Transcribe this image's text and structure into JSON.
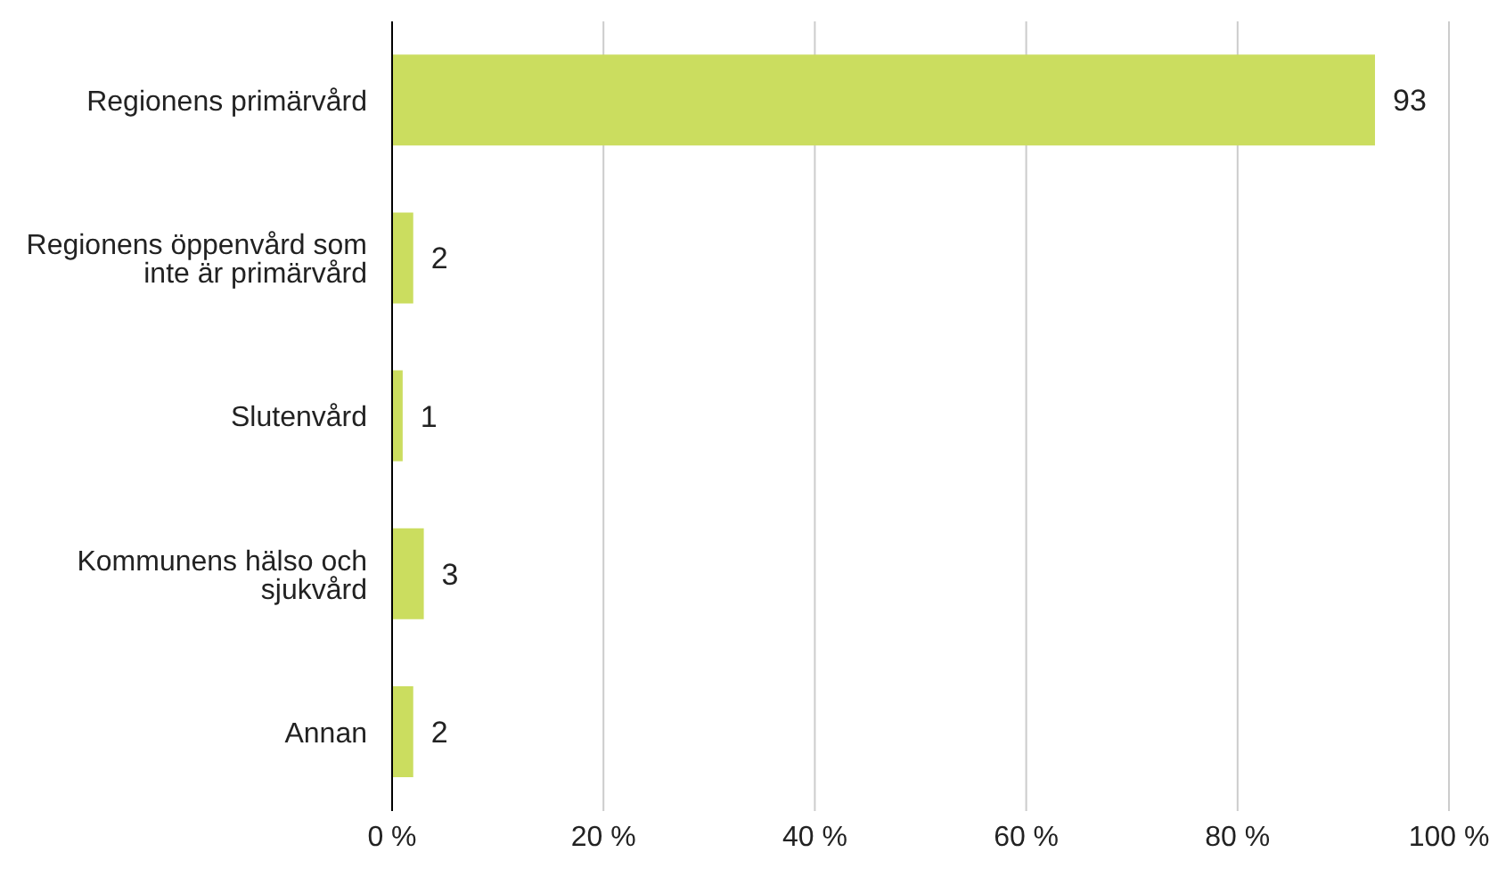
{
  "chart_data": {
    "type": "bar",
    "orientation": "horizontal",
    "categories": [
      "Regionens primärvård",
      "Regionens öppenvård som inte är primärvård",
      "Slutenvård",
      "Kommunens hälso och sjukvård",
      "Annan"
    ],
    "values": [
      93,
      2,
      1,
      3,
      2
    ],
    "color": "#cbdd5f",
    "data_labels": true,
    "xlim": [
      0,
      100
    ],
    "xticks": [
      {
        "value": 0,
        "label": "0 %"
      },
      {
        "value": 20,
        "label": "20 %"
      },
      {
        "value": 40,
        "label": "40 %"
      },
      {
        "value": 60,
        "label": "60 %"
      },
      {
        "value": 80,
        "label": "80 %"
      },
      {
        "value": 100,
        "label": "100 %"
      }
    ],
    "grid": "x"
  }
}
